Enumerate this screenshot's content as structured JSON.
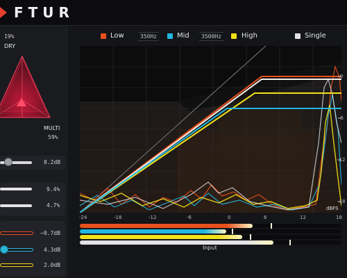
{
  "app": {
    "logo_text": "FTUR"
  },
  "left_panel": {
    "dry_percent": "19%",
    "dry_label": "DRY",
    "multi_label": "MULTI",
    "multi_percent": "59%",
    "sliders": [
      {
        "value": "8.2dB",
        "level": 0.12
      },
      {
        "value": "9.4%",
        "level": 1.0
      },
      {
        "value": "4.7%",
        "level": 1.0
      },
      {
        "value": "−0.7dB",
        "level": 1.0,
        "color": "#e8502a"
      },
      {
        "value": "4.3dB",
        "level": 0.05,
        "color": "#2bb6d8"
      },
      {
        "value": "2.0dB",
        "level": 0.02,
        "color": "#f2d21a"
      }
    ]
  },
  "legend": {
    "low": "Low",
    "low_color": "#e8501e",
    "crossover_low": "350Hz",
    "mid": "Mid",
    "mid_color": "#21b7e0",
    "crossover_high": "3500Hz",
    "high": "High",
    "high_color": "#f2e01a",
    "single": "Single",
    "single_color": "#e2e2e6"
  },
  "graph": {
    "y_ticks": [
      "0",
      "-6",
      "-12",
      "-18"
    ],
    "x_ticks": [
      "-24",
      "-18",
      "-12",
      "-6",
      "0",
      "6",
      "12",
      "18"
    ],
    "dbfs_label": "dBFS"
  },
  "meters": {
    "label": "Input",
    "levels": [
      {
        "color": "#e8501e",
        "level": 0.66,
        "peak": 0.73
      },
      {
        "color": "#21b7e0",
        "level": 0.56,
        "peak": 0.58
      },
      {
        "color": "#f2e01a",
        "level": 0.62,
        "peak": 0.65
      },
      {
        "color": "#e2e2e6",
        "level": 0.74,
        "peak": 0.8
      }
    ]
  }
}
